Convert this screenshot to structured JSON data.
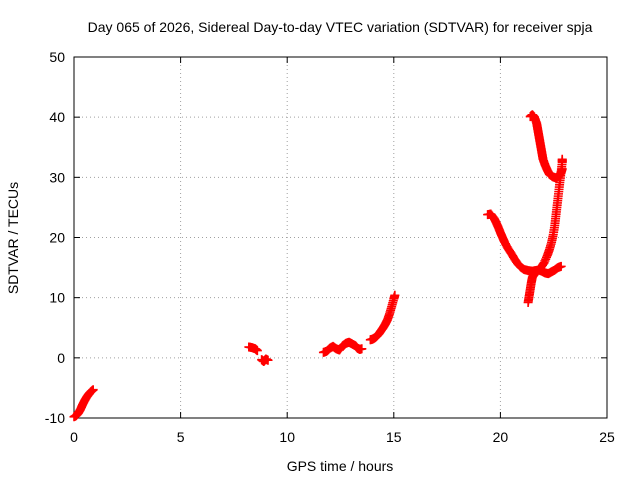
{
  "chart_data": {
    "type": "scatter",
    "title": "Day 065 of 2026, Sidereal Day-to-day VTEC variation (SDTVAR) for receiver spja",
    "xlabel": "GPS time / hours",
    "ylabel": "SDTVAR / TECUs",
    "xlim": [
      0,
      25
    ],
    "ylim": [
      -10,
      50
    ],
    "xticks": [
      0,
      5,
      10,
      15,
      20,
      25
    ],
    "yticks": [
      -10,
      0,
      10,
      20,
      30,
      40,
      50
    ],
    "xtick_labels": [
      "0",
      "5",
      "10",
      "15",
      "20",
      "25"
    ],
    "ytick_labels": [
      "-10",
      "0",
      "10",
      "20",
      "30",
      "40",
      "50"
    ],
    "grid": true,
    "legend": "none",
    "marker": "+",
    "color": "#ff0000",
    "series": [
      {
        "segments": [
          [
            [
              0.0,
              -9.8
            ],
            [
              0.1,
              -9.6
            ],
            [
              0.2,
              -9.2
            ],
            [
              0.3,
              -8.6
            ],
            [
              0.4,
              -7.8
            ],
            [
              0.5,
              -7.1
            ],
            [
              0.6,
              -6.5
            ],
            [
              0.7,
              -6.0
            ],
            [
              0.8,
              -5.6
            ],
            [
              0.9,
              -5.3
            ]
          ],
          [
            [
              8.2,
              1.8
            ],
            [
              8.35,
              1.7
            ],
            [
              8.5,
              1.5
            ],
            [
              8.6,
              1.2
            ]
          ],
          [
            [
              8.8,
              -0.3
            ],
            [
              8.9,
              -0.6
            ],
            [
              9.0,
              -0.2
            ],
            [
              9.1,
              -0.4
            ]
          ],
          [
            [
              11.7,
              0.9
            ],
            [
              11.85,
              1.1
            ],
            [
              12.0,
              1.6
            ],
            [
              12.15,
              1.9
            ],
            [
              12.3,
              1.5
            ],
            [
              12.45,
              1.3
            ],
            [
              12.6,
              2.0
            ],
            [
              12.75,
              2.4
            ],
            [
              12.9,
              2.6
            ],
            [
              13.05,
              2.3
            ],
            [
              13.2,
              2.0
            ],
            [
              13.3,
              1.6
            ],
            [
              13.4,
              1.4
            ],
            [
              13.5,
              1.5
            ]
          ],
          [
            [
              13.9,
              3.0
            ],
            [
              14.0,
              3.1
            ],
            [
              14.1,
              3.3
            ],
            [
              14.2,
              3.6
            ],
            [
              14.3,
              4.0
            ],
            [
              14.4,
              4.5
            ],
            [
              14.5,
              5.0
            ],
            [
              14.6,
              5.6
            ],
            [
              14.7,
              6.3
            ],
            [
              14.8,
              7.3
            ],
            [
              14.9,
              8.5
            ],
            [
              15.0,
              9.8
            ],
            [
              15.05,
              10.4
            ]
          ],
          [
            [
              19.4,
              23.8
            ],
            [
              19.55,
              23.9
            ],
            [
              19.7,
              23.2
            ],
            [
              19.8,
              22.5
            ],
            [
              19.9,
              21.7
            ],
            [
              20.0,
              20.8
            ],
            [
              20.1,
              20.0
            ],
            [
              20.2,
              19.2
            ],
            [
              20.35,
              18.2
            ],
            [
              20.5,
              17.4
            ],
            [
              20.65,
              16.5
            ],
            [
              20.8,
              15.7
            ],
            [
              20.95,
              15.1
            ],
            [
              21.1,
              14.7
            ],
            [
              21.3,
              14.5
            ],
            [
              21.5,
              14.4
            ],
            [
              21.65,
              14.5
            ],
            [
              21.8,
              14.6
            ],
            [
              21.95,
              14.4
            ],
            [
              22.1,
              14.1
            ],
            [
              22.25,
              14.0
            ],
            [
              22.4,
              14.3
            ],
            [
              22.55,
              14.6
            ],
            [
              22.7,
              15.0
            ],
            [
              22.85,
              15.2
            ]
          ],
          [
            [
              21.3,
              9.2
            ],
            [
              21.35,
              10.3
            ],
            [
              21.4,
              11.4
            ],
            [
              21.45,
              12.5
            ],
            [
              21.5,
              13.4
            ],
            [
              21.6,
              14.0
            ],
            [
              21.75,
              14.4
            ],
            [
              21.9,
              15.0
            ],
            [
              22.05,
              15.8
            ],
            [
              22.2,
              17.0
            ],
            [
              22.3,
              18.0
            ],
            [
              22.4,
              19.2
            ],
            [
              22.48,
              20.5
            ],
            [
              22.55,
              22.0
            ],
            [
              22.6,
              23.5
            ],
            [
              22.65,
              25.0
            ],
            [
              22.7,
              26.5
            ],
            [
              22.75,
              28.0
            ],
            [
              22.8,
              29.5
            ],
            [
              22.85,
              31.0
            ],
            [
              22.9,
              32.5
            ],
            [
              22.9,
              33.0
            ]
          ],
          [
            [
              21.4,
              40.1
            ],
            [
              21.5,
              40.4
            ],
            [
              21.6,
              40.0
            ],
            [
              21.7,
              39.0
            ],
            [
              21.75,
              38.0
            ],
            [
              21.8,
              37.0
            ],
            [
              21.85,
              36.0
            ],
            [
              21.9,
              35.0
            ],
            [
              21.95,
              34.0
            ],
            [
              22.0,
              33.0
            ],
            [
              22.1,
              32.0
            ],
            [
              22.2,
              31.2
            ],
            [
              22.3,
              30.5
            ],
            [
              22.45,
              30.1
            ],
            [
              22.6,
              29.9
            ],
            [
              22.75,
              30.2
            ],
            [
              22.85,
              30.8
            ],
            [
              22.9,
              31.4
            ]
          ]
        ]
      }
    ]
  }
}
